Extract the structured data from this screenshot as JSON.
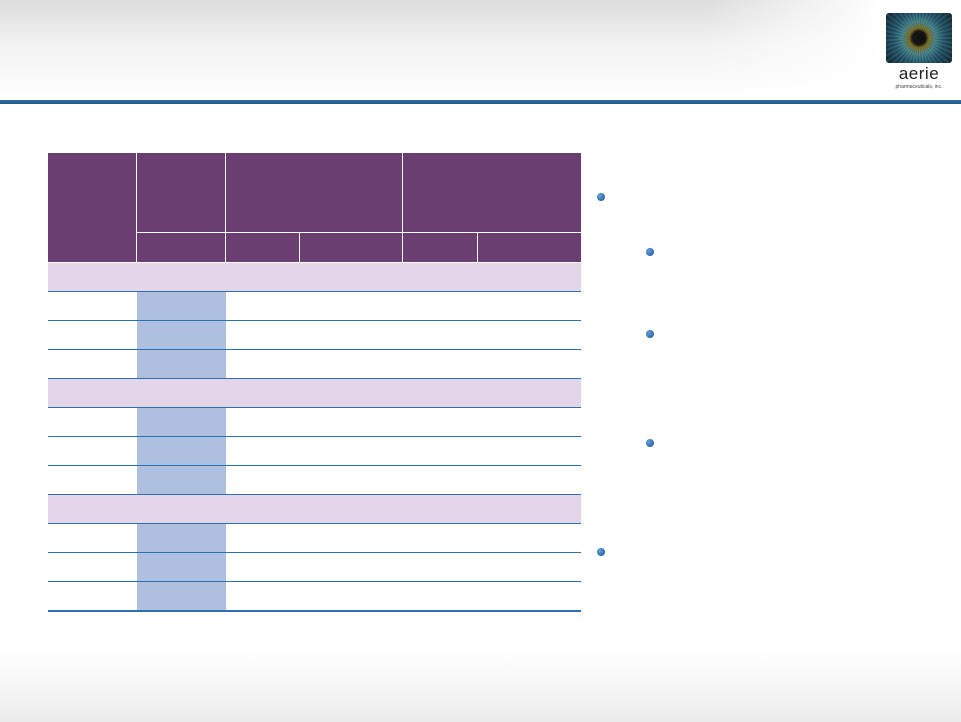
{
  "logo": {
    "wordmark": "aerie",
    "tagline": "pharmaceuticals, inc."
  },
  "table": {
    "groups": 3,
    "rows_per_group": 3
  },
  "bullets": {
    "level1": 2,
    "level2": 3
  }
}
